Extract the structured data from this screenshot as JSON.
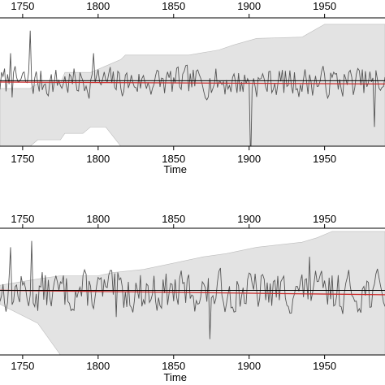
{
  "chart_data": [
    {
      "type": "line",
      "xlabel": "Time",
      "ylabel": "",
      "xlim": [
        1735,
        1990
      ],
      "x_ticks": [
        "1750",
        "1800",
        "1850",
        "1900",
        "1950"
      ],
      "x_tick_values": [
        1750,
        1800,
        1850,
        1900,
        1950
      ],
      "ylim": [
        -1.0,
        1.0
      ],
      "series": [
        {
          "role": "series",
          "x_start": 1735,
          "x_end": 1990,
          "x_step": 1,
          "seed": 7,
          "amplitude": 0.22,
          "spikes": [
            [
              1755,
              0.8
            ],
            [
              1901,
              -1.3
            ],
            [
              1983,
              -0.7
            ],
            [
              1742,
              0.45
            ],
            [
              1797,
              0.45
            ]
          ]
        },
        {
          "role": "trend",
          "x": [
            1735,
            1990
          ],
          "y": [
            0.0,
            -0.03
          ]
        },
        {
          "role": "reference",
          "x": [
            1735,
            1990
          ],
          "y": [
            0.02,
            0.02
          ]
        }
      ],
      "bands": [
        {
          "x": [
            1735,
            1755,
            1760,
            1775,
            1778,
            1790,
            1795,
            1805,
            1815,
            1818,
            1830,
            1860,
            1880,
            1890,
            1905,
            1935,
            1950,
            1990
          ],
          "upper": [
            -0.1,
            -0.1,
            -0.02,
            -0.02,
            0.15,
            0.15,
            0.15,
            0.25,
            0.35,
            0.42,
            0.42,
            0.42,
            0.5,
            0.58,
            0.68,
            0.7,
            0.9,
            0.9
          ],
          "lower": [
            -1.0,
            -1.0,
            -0.9,
            -0.9,
            -0.8,
            -0.8,
            -0.7,
            -0.7,
            -1.0,
            -1.0,
            -1.0,
            -1.0,
            -1.0,
            -1.0,
            -1.0,
            -1.0,
            -1.0,
            -1.0
          ]
        }
      ]
    },
    {
      "type": "line",
      "xlabel": "Time",
      "ylabel": "",
      "xlim": [
        1735,
        1990
      ],
      "x_ticks": [
        "1750",
        "1800",
        "1850",
        "1900",
        "1950"
      ],
      "x_tick_values": [
        1750,
        1800,
        1850,
        1900,
        1950
      ],
      "ylim": [
        -1.0,
        1.0
      ],
      "series": [
        {
          "role": "series",
          "x_start": 1735,
          "x_end": 1990,
          "x_step": 1,
          "seed": 13,
          "amplitude": 0.3,
          "spikes": [
            [
              1742,
              0.7
            ],
            [
              1756,
              0.8
            ],
            [
              1874,
              -0.75
            ],
            [
              1940,
              0.55
            ],
            [
              1812,
              -0.4
            ]
          ]
        },
        {
          "role": "trend",
          "x": [
            1735,
            1990
          ],
          "y": [
            0.02,
            -0.05
          ]
        },
        {
          "role": "reference",
          "x": [
            1735,
            1990
          ],
          "y": [
            0.02,
            0.02
          ]
        }
      ],
      "bands": [
        {
          "x": [
            1735,
            1760,
            1775,
            1800,
            1810,
            1830,
            1850,
            1870,
            1885,
            1905,
            1935,
            1945,
            1955,
            1990
          ],
          "upper": [
            0.1,
            0.2,
            0.25,
            0.25,
            0.3,
            0.35,
            0.45,
            0.55,
            0.6,
            0.7,
            0.78,
            0.85,
            0.95,
            0.95
          ],
          "lower": [
            -0.2,
            -0.5,
            -1.0,
            -1.0,
            -1.0,
            -1.0,
            -1.0,
            -1.0,
            -1.0,
            -1.0,
            -1.0,
            -1.0,
            -1.0,
            -1.0
          ]
        }
      ]
    }
  ],
  "colors": {
    "band": "#e3e3e3",
    "series": "#555555",
    "trend": "#cc2a2a",
    "reference": "#000000",
    "frame": "#000000"
  }
}
